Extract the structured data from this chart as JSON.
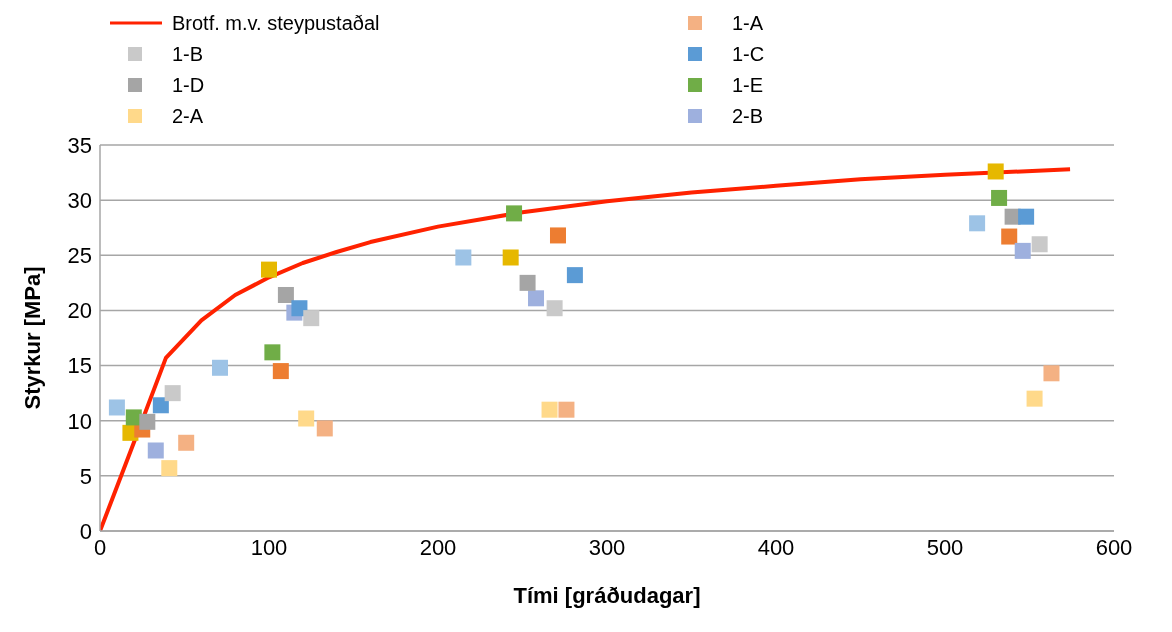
{
  "chart_data": {
    "type": "scatter",
    "xlabel": "Tími [gráðudagar]",
    "ylabel": "Styrkur [MPa]",
    "xlim": [
      0,
      600
    ],
    "xticks": [
      0,
      100,
      200,
      300,
      400,
      500,
      600
    ],
    "ylim": [
      0,
      35
    ],
    "yticks": [
      0,
      5,
      10,
      15,
      20,
      25,
      30,
      35
    ],
    "grid": "y",
    "legend": "top",
    "marker": "square",
    "series": [
      {
        "name": "Brotf. m.v. steypustaðal",
        "type": "line",
        "marker": "none",
        "color": "#ff2200",
        "x": [
          0,
          20,
          39,
          60,
          80,
          100,
          120,
          140,
          160,
          200,
          250,
          300,
          350,
          400,
          450,
          500,
          574
        ],
        "values": [
          0,
          8,
          15.7,
          19.1,
          21.4,
          23,
          24.3,
          25.3,
          26.2,
          27.6,
          28.9,
          29.9,
          30.7,
          31.3,
          31.9,
          32.3,
          32.8
        ]
      },
      {
        "name": "1-A",
        "color": "#f4b183",
        "x": [
          51,
          133,
          276,
          563
        ],
        "values": [
          8,
          9.3,
          11,
          14.3
        ]
      },
      {
        "name": "1-B",
        "color": "#c9c9c9",
        "x": [
          43,
          125,
          269,
          556
        ],
        "values": [
          12.5,
          19.3,
          20.2,
          26
        ]
      },
      {
        "name": "1-C",
        "color": "#5b9bd5",
        "x": [
          36,
          118,
          281,
          548
        ],
        "values": [
          11.4,
          20.2,
          23.2,
          28.5
        ]
      },
      {
        "name": "1-D",
        "color": "#a5a5a5",
        "x": [
          28,
          110,
          253,
          540
        ],
        "values": [
          9.9,
          21.4,
          22.5,
          28.5
        ]
      },
      {
        "name": "1-E",
        "color": "#70ad47",
        "x": [
          20,
          102,
          245,
          532
        ],
        "values": [
          10.3,
          16.2,
          28.8,
          30.2
        ]
      },
      {
        "name": "2-A",
        "color": "#ffd98a",
        "x": [
          41,
          122,
          266,
          553
        ],
        "values": [
          5.7,
          10.2,
          11,
          12
        ]
      },
      {
        "name": "2-B",
        "color": "#9eb0de",
        "x": [
          33,
          115,
          258,
          546
        ],
        "values": [
          7.3,
          19.8,
          21.1,
          25.4
        ]
      },
      {
        "color": "#ed7d31",
        "x": [
          25,
          107,
          271,
          538
        ],
        "values": [
          9.2,
          14.5,
          26.8,
          26.7
        ]
      },
      {
        "color": "#e6b800",
        "x": [
          18,
          100,
          243,
          530
        ],
        "values": [
          8.9,
          23.7,
          24.8,
          32.6
        ]
      },
      {
        "color": "#9dc3e6",
        "x": [
          10,
          71,
          215,
          519
        ],
        "values": [
          11.2,
          14.8,
          24.8,
          27.9
        ]
      }
    ]
  }
}
